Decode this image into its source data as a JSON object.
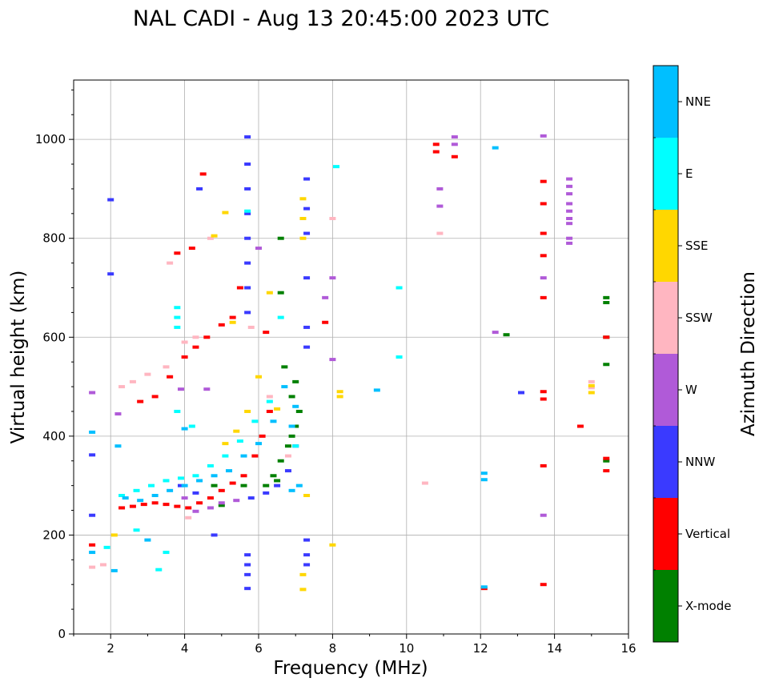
{
  "chart_data": {
    "type": "scatter",
    "title": "NAL CADI - Aug 13 20:45:00 2023 UTC",
    "xlabel": "Frequency (MHz)",
    "ylabel": "Virtual height (km)",
    "xlim": [
      1,
      16
    ],
    "ylim": [
      0,
      1120
    ],
    "xticks": [
      2,
      4,
      6,
      8,
      10,
      12,
      14,
      16
    ],
    "yticks": [
      0,
      200,
      400,
      600,
      800,
      1000
    ],
    "grid": true,
    "colorbar": {
      "label": "Azimuth Direction",
      "categories": [
        {
          "name": "X-mode",
          "color": "#008000"
        },
        {
          "name": "Vertical",
          "color": "#ff0000"
        },
        {
          "name": "NNW",
          "color": "#3a3aff"
        },
        {
          "name": "W",
          "color": "#b05ad8"
        },
        {
          "name": "SSW",
          "color": "#ffb6c1"
        },
        {
          "name": "SSE",
          "color": "#ffd700"
        },
        {
          "name": "E",
          "color": "#00ffff"
        },
        {
          "name": "NNE",
          "color": "#00bfff"
        }
      ]
    },
    "series": [
      {
        "name": "X-mode",
        "points": [
          [
            6.2,
            300
          ],
          [
            6.4,
            320
          ],
          [
            6.6,
            350
          ],
          [
            6.8,
            380
          ],
          [
            7.0,
            420
          ],
          [
            7.1,
            450
          ],
          [
            6.9,
            480
          ],
          [
            7.0,
            510
          ],
          [
            6.7,
            540
          ],
          [
            6.5,
            310
          ],
          [
            6.9,
            400
          ],
          [
            6.6,
            800
          ],
          [
            6.6,
            690
          ],
          [
            15.4,
            680
          ],
          [
            15.4,
            670
          ],
          [
            15.4,
            600
          ],
          [
            15.4,
            545
          ],
          [
            15.4,
            350
          ],
          [
            12.7,
            605
          ],
          [
            5.0,
            260
          ],
          [
            5.6,
            300
          ],
          [
            4.8,
            300
          ]
        ]
      },
      {
        "name": "Vertical",
        "points": [
          [
            2.3,
            255
          ],
          [
            2.6,
            258
          ],
          [
            2.9,
            262
          ],
          [
            3.2,
            265
          ],
          [
            3.5,
            262
          ],
          [
            3.8,
            258
          ],
          [
            4.1,
            255
          ],
          [
            4.4,
            265
          ],
          [
            4.7,
            275
          ],
          [
            5.0,
            290
          ],
          [
            5.3,
            305
          ],
          [
            5.6,
            320
          ],
          [
            5.9,
            360
          ],
          [
            6.1,
            400
          ],
          [
            6.3,
            450
          ],
          [
            2.8,
            470
          ],
          [
            3.2,
            480
          ],
          [
            3.6,
            520
          ],
          [
            4.0,
            560
          ],
          [
            4.3,
            580
          ],
          [
            4.6,
            600
          ],
          [
            5.0,
            625
          ],
          [
            5.3,
            640
          ],
          [
            5.5,
            700
          ],
          [
            3.8,
            770
          ],
          [
            4.2,
            780
          ],
          [
            4.5,
            930
          ],
          [
            10.8,
            990
          ],
          [
            10.8,
            975
          ],
          [
            11.3,
            965
          ],
          [
            13.7,
            915
          ],
          [
            13.7,
            870
          ],
          [
            13.7,
            810
          ],
          [
            13.7,
            765
          ],
          [
            13.7,
            680
          ],
          [
            13.7,
            490
          ],
          [
            13.7,
            475
          ],
          [
            13.7,
            340
          ],
          [
            13.7,
            100
          ],
          [
            14.7,
            420
          ],
          [
            15.4,
            330
          ],
          [
            15.4,
            600
          ],
          [
            15.4,
            355
          ],
          [
            12.1,
            92
          ],
          [
            1.5,
            180
          ],
          [
            6.2,
            610
          ],
          [
            7.8,
            630
          ]
        ]
      },
      {
        "name": "NNW",
        "points": [
          [
            5.7,
            1005
          ],
          [
            5.7,
            950
          ],
          [
            5.7,
            900
          ],
          [
            5.7,
            850
          ],
          [
            5.7,
            800
          ],
          [
            5.7,
            750
          ],
          [
            5.7,
            700
          ],
          [
            5.7,
            650
          ],
          [
            5.7,
            160
          ],
          [
            5.7,
            140
          ],
          [
            5.7,
            120
          ],
          [
            5.7,
            92
          ],
          [
            7.3,
            920
          ],
          [
            7.3,
            860
          ],
          [
            7.3,
            810
          ],
          [
            7.3,
            720
          ],
          [
            7.3,
            620
          ],
          [
            7.3,
            580
          ],
          [
            7.3,
            190
          ],
          [
            7.3,
            160
          ],
          [
            7.3,
            140
          ],
          [
            7.0,
            380
          ],
          [
            6.8,
            330
          ],
          [
            6.5,
            300
          ],
          [
            6.2,
            285
          ],
          [
            5.8,
            275
          ],
          [
            3.9,
            300
          ],
          [
            4.3,
            285
          ],
          [
            2.0,
            878
          ],
          [
            2.0,
            728
          ],
          [
            1.5,
            362
          ],
          [
            4.4,
            900
          ],
          [
            13.1,
            488
          ],
          [
            4.8,
            200
          ],
          [
            1.5,
            240
          ]
        ]
      },
      {
        "name": "W",
        "points": [
          [
            4.3,
            248
          ],
          [
            4.7,
            255
          ],
          [
            5.0,
            265
          ],
          [
            5.4,
            270
          ],
          [
            4.0,
            275
          ],
          [
            11.3,
            1005
          ],
          [
            11.3,
            990
          ],
          [
            13.7,
            1007
          ],
          [
            13.7,
            720
          ],
          [
            13.7,
            240
          ],
          [
            14.4,
            920
          ],
          [
            14.4,
            905
          ],
          [
            14.4,
            890
          ],
          [
            14.4,
            870
          ],
          [
            14.4,
            855
          ],
          [
            14.4,
            840
          ],
          [
            14.4,
            830
          ],
          [
            14.4,
            800
          ],
          [
            14.4,
            790
          ],
          [
            12.4,
            610
          ],
          [
            10.9,
            900
          ],
          [
            10.9,
            865
          ],
          [
            8.0,
            720
          ],
          [
            8.0,
            555
          ],
          [
            1.5,
            488
          ],
          [
            7.8,
            680
          ],
          [
            4.6,
            495
          ],
          [
            3.9,
            495
          ],
          [
            2.2,
            445
          ],
          [
            6.0,
            780
          ]
        ]
      },
      {
        "name": "SSW",
        "points": [
          [
            1.5,
            135
          ],
          [
            1.8,
            140
          ],
          [
            2.3,
            500
          ],
          [
            2.6,
            510
          ],
          [
            3.0,
            525
          ],
          [
            3.5,
            540
          ],
          [
            4.0,
            590
          ],
          [
            4.3,
            600
          ],
          [
            4.7,
            800
          ],
          [
            3.6,
            750
          ],
          [
            15.0,
            510
          ],
          [
            15.0,
            498
          ],
          [
            10.9,
            810
          ],
          [
            10.5,
            305
          ],
          [
            8.0,
            840
          ],
          [
            6.8,
            360
          ],
          [
            6.3,
            480
          ],
          [
            5.8,
            620
          ],
          [
            4.1,
            235
          ]
        ]
      },
      {
        "name": "SSE",
        "points": [
          [
            5.1,
            385
          ],
          [
            5.4,
            410
          ],
          [
            5.7,
            450
          ],
          [
            6.0,
            520
          ],
          [
            6.3,
            690
          ],
          [
            6.5,
            455
          ],
          [
            7.2,
            840
          ],
          [
            7.2,
            800
          ],
          [
            7.2,
            880
          ],
          [
            7.3,
            280
          ],
          [
            7.2,
            120
          ],
          [
            7.2,
            90
          ],
          [
            8.0,
            180
          ],
          [
            8.2,
            490
          ],
          [
            8.2,
            480
          ],
          [
            15.0,
            502
          ],
          [
            15.0,
            488
          ],
          [
            5.1,
            852
          ],
          [
            5.3,
            630
          ],
          [
            4.8,
            805
          ],
          [
            2.1,
            200
          ]
        ]
      },
      {
        "name": "E",
        "points": [
          [
            1.9,
            175
          ],
          [
            2.3,
            280
          ],
          [
            2.7,
            290
          ],
          [
            3.1,
            300
          ],
          [
            3.5,
            310
          ],
          [
            3.9,
            315
          ],
          [
            4.3,
            320
          ],
          [
            4.7,
            340
          ],
          [
            5.1,
            360
          ],
          [
            5.5,
            390
          ],
          [
            5.9,
            430
          ],
          [
            6.3,
            470
          ],
          [
            6.6,
            640
          ],
          [
            3.8,
            660
          ],
          [
            3.8,
            640
          ],
          [
            3.8,
            620
          ],
          [
            9.8,
            700
          ],
          [
            9.8,
            560
          ],
          [
            8.1,
            945
          ],
          [
            5.7,
            855
          ],
          [
            3.8,
            450
          ],
          [
            4.2,
            420
          ],
          [
            2.7,
            210
          ],
          [
            3.3,
            130
          ],
          [
            3.5,
            165
          ],
          [
            7.0,
            380
          ]
        ]
      },
      {
        "name": "NNE",
        "points": [
          [
            2.4,
            275
          ],
          [
            2.8,
            270
          ],
          [
            3.2,
            280
          ],
          [
            3.6,
            290
          ],
          [
            4.0,
            300
          ],
          [
            4.4,
            310
          ],
          [
            4.8,
            320
          ],
          [
            5.2,
            330
          ],
          [
            5.6,
            360
          ],
          [
            6.0,
            385
          ],
          [
            6.4,
            430
          ],
          [
            6.7,
            500
          ],
          [
            7.0,
            460
          ],
          [
            7.1,
            300
          ],
          [
            6.9,
            290
          ],
          [
            12.1,
            325
          ],
          [
            12.1,
            312
          ],
          [
            12.4,
            983
          ],
          [
            2.1,
            128
          ],
          [
            1.5,
            408
          ],
          [
            6.9,
            420
          ],
          [
            4.0,
            415
          ],
          [
            3.0,
            190
          ],
          [
            1.5,
            165
          ],
          [
            12.1,
            95
          ],
          [
            9.2,
            493
          ],
          [
            2.2,
            380
          ]
        ]
      }
    ]
  }
}
